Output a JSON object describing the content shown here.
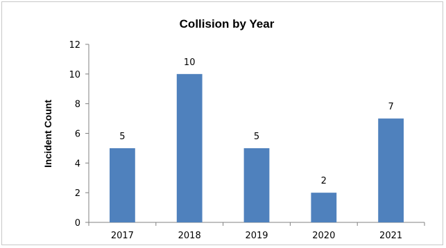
{
  "chart_data": {
    "type": "bar",
    "title": "Collision by Year",
    "xlabel": "",
    "ylabel": "Incident Count",
    "categories": [
      "2017",
      "2018",
      "2019",
      "2020",
      "2021"
    ],
    "values": [
      5,
      10,
      5,
      2,
      7
    ],
    "ylim": [
      0,
      12
    ],
    "yticks": [
      0,
      2,
      4,
      6,
      8,
      10,
      12
    ],
    "grid": false,
    "legend": "none",
    "data_labels": true,
    "bar_color": "#4f81bd"
  }
}
